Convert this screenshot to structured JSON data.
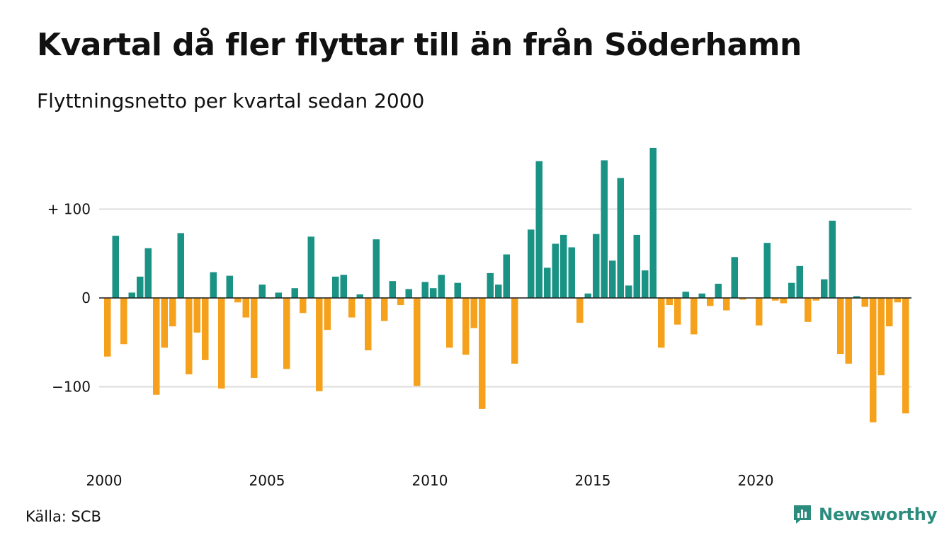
{
  "header": {
    "title": "Kvartal då fler flyttar till än från Söderhamn",
    "subtitle": "Flyttningsnetto per kvartal sedan 2000"
  },
  "footer": {
    "source": "Källa: SCB",
    "brand": "Newsworthy",
    "brand_icon": "bar-chart-speech-bubble-icon"
  },
  "colors": {
    "positive": "#1a9384",
    "negative": "#f5a11c",
    "grid": "#dddddd",
    "brand": "#2b8c7e"
  },
  "chart_data": {
    "type": "bar",
    "xlabel": "",
    "ylabel": "",
    "ylim": [
      -175,
      175
    ],
    "grid": true,
    "y_ticks": [
      {
        "value": 100,
        "label": "+ 100"
      },
      {
        "value": 0,
        "label": "0"
      },
      {
        "value": -100,
        "label": "−100"
      }
    ],
    "x_ticks": [
      {
        "value": 2000,
        "label": "2000"
      },
      {
        "value": 2005,
        "label": "2005"
      },
      {
        "value": 2010,
        "label": "2010"
      },
      {
        "value": 2015,
        "label": "2015"
      },
      {
        "value": 2020,
        "label": "2020"
      }
    ],
    "start_year": 2000,
    "values": [
      -66,
      70,
      -52,
      6,
      24,
      56,
      -109,
      -56,
      -32,
      73,
      -86,
      -39,
      -70,
      29,
      -102,
      25,
      -5,
      -22,
      -90,
      15,
      -1,
      6,
      -80,
      11,
      -17,
      69,
      -105,
      -36,
      24,
      26,
      -22,
      4,
      -59,
      66,
      -26,
      19,
      -8,
      10,
      -99,
      18,
      11,
      26,
      -56,
      17,
      -64,
      -34,
      -125,
      28,
      15,
      49,
      -74,
      0,
      77,
      154,
      34,
      61,
      71,
      57,
      -28,
      5,
      72,
      155,
      42,
      135,
      14,
      71,
      31,
      169,
      -56,
      -8,
      -30,
      7,
      -41,
      5,
      -9,
      16,
      -14,
      46,
      -2,
      0,
      -31,
      62,
      -3,
      -6,
      17,
      36,
      -27,
      -3,
      21,
      87,
      -63,
      -74,
      2,
      -10,
      -140,
      -87,
      -32,
      -5,
      -130
    ]
  }
}
